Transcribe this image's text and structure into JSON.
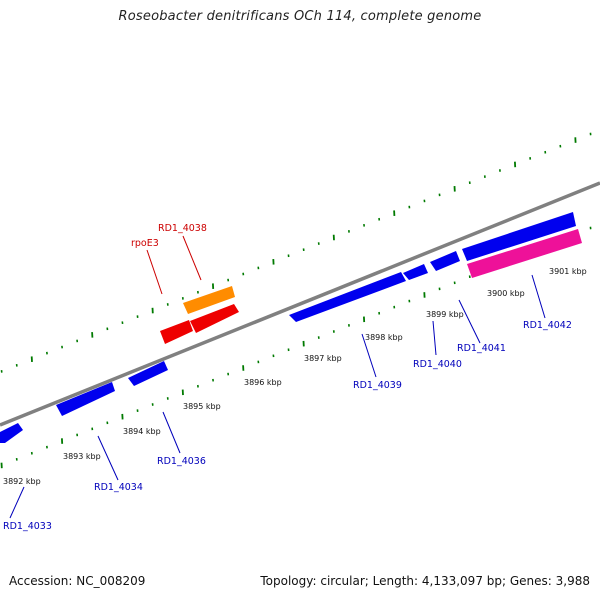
{
  "title": "Roseobacter denitrificans OCh 114, complete genome",
  "accession": "Accession: NC_008209",
  "summary": "Topology: circular; Length: 4,133,097 bp; Genes: 3,988",
  "colors": {
    "backbone": "#808080",
    "tick": "#007a00",
    "cds_forward_strand": "#0000ee",
    "cds_highlight_pink": "#ee1199",
    "gene_orange": "#ff8c00",
    "gene_red": "#ee0000",
    "label_blue": "#0000bb",
    "label_red": "#cc0000"
  },
  "scale_labels": [
    "3892 kbp",
    "3893 kbp",
    "3894 kbp",
    "3895 kbp",
    "3896 kbp",
    "3897 kbp",
    "3898 kbp",
    "3899 kbp",
    "3900 kbp",
    "3901 kbp"
  ],
  "gene_labels": {
    "rd1_4033": "RD1_4033",
    "rd1_4034": "RD1_4034",
    "rd1_4036": "RD1_4036",
    "rpoe3": "rpoE3",
    "rd1_4038": "RD1_4038",
    "rd1_4039": "RD1_4039",
    "rd1_4040": "RD1_4040",
    "rd1_4041": "RD1_4041",
    "rd1_4042": "RD1_4042"
  }
}
